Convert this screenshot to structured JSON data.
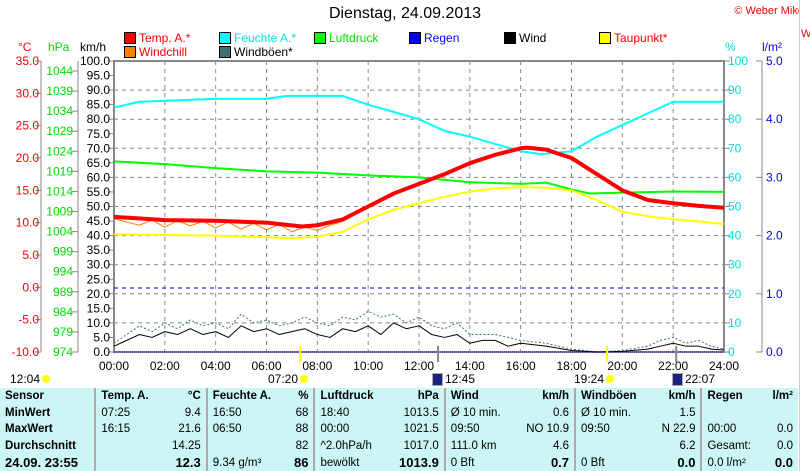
{
  "header": {
    "title": "Dienstag, 24.09.2013",
    "copyright": "© Weber Mike"
  },
  "legend": [
    {
      "label": "Temp. A.*",
      "color": "#ff0000",
      "text_color": "#ff0000"
    },
    {
      "label": "Windchill",
      "color": "#ff8000",
      "text_color": "#ff0000"
    },
    {
      "label": "Feuchte A.*",
      "color": "#00ffff",
      "text_color": "#00e0e0"
    },
    {
      "label": "Windböen*",
      "color": "#407070",
      "text_color": "#000000"
    },
    {
      "label": "Luftdruck",
      "color": "#00ff00",
      "text_color": "#00dd00"
    },
    {
      "label": "Regen",
      "color": "#0000ff",
      "text_color": "#0000ff"
    },
    {
      "label": "Wind",
      "color": "#000000",
      "text_color": "#000000"
    },
    {
      "label": "Taupunkt*",
      "color": "#ffff00",
      "text_color": "#ff0000"
    }
  ],
  "axis_units": {
    "temp": "°C",
    "pressure": "hPa",
    "wind": "km/h",
    "humidity": "%",
    "rain": "l/m²"
  },
  "chart_data": {
    "type": "line",
    "title": "Dienstag, 24.09.2013",
    "x_ticks": [
      "00:00",
      "02:00",
      "04:00",
      "06:00",
      "08:00",
      "10:00",
      "12:00",
      "14:00",
      "16:00",
      "18:00",
      "20:00",
      "22:00",
      "24:00"
    ],
    "xlim": [
      0,
      24
    ],
    "axes": {
      "temp": {
        "range": [
          -10,
          35
        ],
        "ticks": [
          "35.0",
          "30.0",
          "25.0",
          "20.0",
          "15.0",
          "10.0",
          "5.0",
          "0.0",
          "-5.0",
          "-10.0"
        ]
      },
      "pressure": {
        "range": [
          974,
          1046.5
        ],
        "ticks": [
          "1044",
          "1039",
          "1034",
          "1029",
          "1024",
          "1019",
          "1014",
          "1009",
          "1004",
          "999",
          "994",
          "989",
          "984",
          "979",
          "974"
        ]
      },
      "wind": {
        "range": [
          0,
          100
        ],
        "ticks": [
          "100.0",
          "95.0",
          "90.0",
          "85.0",
          "80.0",
          "75.0",
          "70.0",
          "65.0",
          "60.0",
          "55.0",
          "50.0",
          "45.0",
          "40.0",
          "35.0",
          "30.0",
          "25.0",
          "20.0",
          "15.0",
          "10.0",
          "5.0",
          "0.0"
        ]
      },
      "humidity": {
        "range": [
          0,
          100
        ],
        "ticks": [
          "100",
          "90",
          "80",
          "70",
          "60",
          "50",
          "40",
          "30",
          "20",
          "10",
          "0"
        ]
      },
      "rain": {
        "range": [
          0,
          5
        ],
        "ticks": [
          "5.0",
          "4.0",
          "3.0",
          "2.0",
          "1.0",
          "0.0"
        ]
      }
    },
    "grid": true,
    "series": [
      {
        "name": "Feuchte A.*",
        "axis": "humidity",
        "color": "#00ffff",
        "width": 2,
        "x": [
          0,
          1,
          4,
          6,
          6.8,
          9,
          10,
          12,
          13,
          14,
          16,
          16.8,
          18,
          19,
          20,
          21,
          22,
          24
        ],
        "y": [
          84,
          86,
          87,
          87,
          88,
          88,
          85,
          80,
          76,
          74,
          69,
          68,
          69,
          74,
          78,
          82,
          86,
          86
        ]
      },
      {
        "name": "Luftdruck",
        "axis": "pressure",
        "color": "#00ff00",
        "width": 2,
        "x": [
          0,
          2,
          4,
          6,
          8,
          10,
          12,
          14,
          16,
          17,
          18,
          18.7,
          20,
          22,
          24
        ],
        "y": [
          1021.5,
          1020.8,
          1019.8,
          1019,
          1018.7,
          1018,
          1017.5,
          1016.3,
          1015.9,
          1016.2,
          1014.5,
          1013.5,
          1013.7,
          1014,
          1013.9
        ]
      },
      {
        "name": "Taupunkt*",
        "axis": "temp",
        "color": "#ffff00",
        "width": 2,
        "x": [
          0,
          4,
          7,
          8,
          9,
          10,
          11,
          12,
          13,
          14,
          15,
          16,
          17,
          18,
          19,
          20,
          21,
          22,
          23,
          24
        ],
        "y": [
          8.2,
          8.0,
          7.6,
          7.8,
          8.6,
          10.5,
          12,
          13,
          14,
          14.8,
          15.3,
          15.5,
          15.4,
          15,
          13.5,
          11.7,
          11,
          10.5,
          10.2,
          9.8
        ]
      },
      {
        "name": "Windchill",
        "axis": "temp",
        "color": "#ff8000",
        "width": 1,
        "x": [
          0,
          1,
          1.5,
          2,
          2.5,
          3,
          3.5,
          4,
          4.5,
          5,
          5.5,
          6,
          6.5,
          7,
          7.5,
          8,
          8.5,
          9,
          10,
          11,
          12,
          13,
          14,
          15,
          16,
          17,
          18,
          19,
          20,
          21,
          22,
          23,
          24
        ],
        "y": [
          10.6,
          9.6,
          10.4,
          9.3,
          10.3,
          9.5,
          10.2,
          9.2,
          10.1,
          9.0,
          9.9,
          8.9,
          9.7,
          8.6,
          9.3,
          8.8,
          9.6,
          10.2,
          12.4,
          14.4,
          16,
          17.5,
          19.2,
          20.5,
          21.5,
          21.3,
          19.9,
          17.5,
          15,
          13.5,
          13,
          12.6,
          12.3
        ]
      },
      {
        "name": "Temp. A.*",
        "axis": "temp",
        "color": "#ff0000",
        "width": 4,
        "x": [
          0,
          2,
          4,
          6,
          7.4,
          8,
          9,
          10,
          11,
          12,
          13,
          14,
          15,
          16,
          16.25,
          17,
          18,
          19,
          20,
          21,
          22,
          23,
          24
        ],
        "y": [
          10.9,
          10.4,
          10.3,
          10,
          9.4,
          9.6,
          10.5,
          12.5,
          14.5,
          16,
          17.5,
          19.2,
          20.5,
          21.5,
          21.6,
          21.3,
          20,
          17.5,
          15,
          13.5,
          13,
          12.6,
          12.3
        ]
      },
      {
        "name": "Windböen*",
        "axis": "wind",
        "color": "#407070",
        "width": 1,
        "dash": "2,2",
        "x": [
          0,
          0.5,
          1,
          1.5,
          2,
          2.5,
          3,
          3.5,
          4,
          4.5,
          5,
          5.5,
          6,
          6.5,
          7,
          7.5,
          8,
          8.5,
          9,
          9.5,
          10,
          10.5,
          11,
          11.5,
          12,
          12.5,
          13,
          13.5,
          14,
          15,
          16,
          17,
          18,
          19,
          20,
          21,
          21.5,
          22,
          22.5,
          23,
          23.5,
          24
        ],
        "y": [
          3,
          6,
          9,
          7,
          10,
          8,
          11,
          9,
          10,
          8,
          13,
          10,
          11,
          9,
          10,
          12,
          10,
          9,
          12,
          11,
          14,
          12,
          13,
          10,
          12,
          9,
          8,
          10,
          6,
          6,
          4,
          3,
          1,
          0,
          0.5,
          2,
          4,
          5,
          3,
          4,
          2,
          1
        ]
      },
      {
        "name": "Wind",
        "axis": "wind",
        "color": "#000000",
        "width": 1,
        "x": [
          0,
          0.5,
          1,
          1.5,
          2,
          2.5,
          3,
          3.5,
          4,
          4.5,
          5,
          5.5,
          6,
          6.5,
          7,
          7.5,
          8,
          8.5,
          9,
          9.5,
          10,
          10.5,
          11,
          11.5,
          12,
          12.5,
          13,
          13.5,
          14,
          14.5,
          15,
          15.5,
          16,
          17,
          18,
          19,
          20,
          21,
          21.5,
          22,
          22.5,
          23,
          23.5,
          24
        ],
        "y": [
          2,
          4,
          6,
          5,
          7,
          6,
          8,
          6,
          7,
          5,
          9,
          7,
          8,
          6,
          7,
          8,
          6,
          5,
          8,
          7,
          9,
          6,
          10,
          8,
          9,
          6,
          5,
          6,
          3,
          4,
          4,
          2,
          3,
          2,
          0.5,
          0,
          0.2,
          1,
          2,
          3,
          2,
          2,
          1,
          0.7
        ]
      },
      {
        "name": "Regen",
        "axis": "rain",
        "color": "#0000ff",
        "width": 1,
        "dash": "1,1",
        "x": [
          0,
          24
        ],
        "y": [
          0,
          0
        ]
      }
    ],
    "reference_line": {
      "axis": "humidity",
      "value": 22,
      "color": "#0000ff"
    }
  },
  "astro": [
    {
      "time": "12:04",
      "icon": "moon-phase-icon",
      "at": 0
    },
    {
      "time": "07:20",
      "icon": "sunrise-icon",
      "at": 7.33
    },
    {
      "time": "12:45",
      "icon": "moonrise-icon",
      "at": 12.75
    },
    {
      "time": "19:24",
      "icon": "sunset-icon",
      "at": 19.4
    },
    {
      "time": "22:07",
      "icon": "moonset-icon",
      "at": 22.12
    }
  ],
  "table": {
    "headers": [
      "Sensor",
      "Temp. A.",
      "°C",
      "Feuchte A.",
      "%",
      "Luftdruck",
      "hPa",
      "Wind",
      "km/h",
      "Windböen",
      "km/h",
      "Regen",
      "l/m²"
    ],
    "rows": [
      [
        "MinWert",
        "07:25",
        "9.4",
        "16:50",
        "68",
        "18:40",
        "1013.5",
        "Ø 10 min.",
        "0.6",
        "Ø 10 min.",
        "1.5",
        "",
        ""
      ],
      [
        "MaxWert",
        "16:15",
        "21.6",
        "06:50",
        "88",
        "00:00",
        "1021.5",
        "09:50",
        "NO 10.9",
        "09:50",
        "N 22.9",
        "00:00",
        "0.0"
      ],
      [
        "Durchschnitt",
        "",
        "14.25",
        "",
        "82",
        "^2.0hPa/h",
        "1017.0",
        "111.0 km",
        "4.6",
        "",
        "6.2",
        "Gesamt:",
        "0.0"
      ],
      [
        "24.09. 23:55",
        "",
        "12.3",
        "9.34 g/m³",
        "86",
        "bewölkt",
        "1013.9",
        "0 Bft",
        "0.7",
        "0 Bft",
        "0.0",
        "0.0 l/m²",
        "0.0"
      ]
    ]
  },
  "right_panel": {
    "label": "W"
  }
}
